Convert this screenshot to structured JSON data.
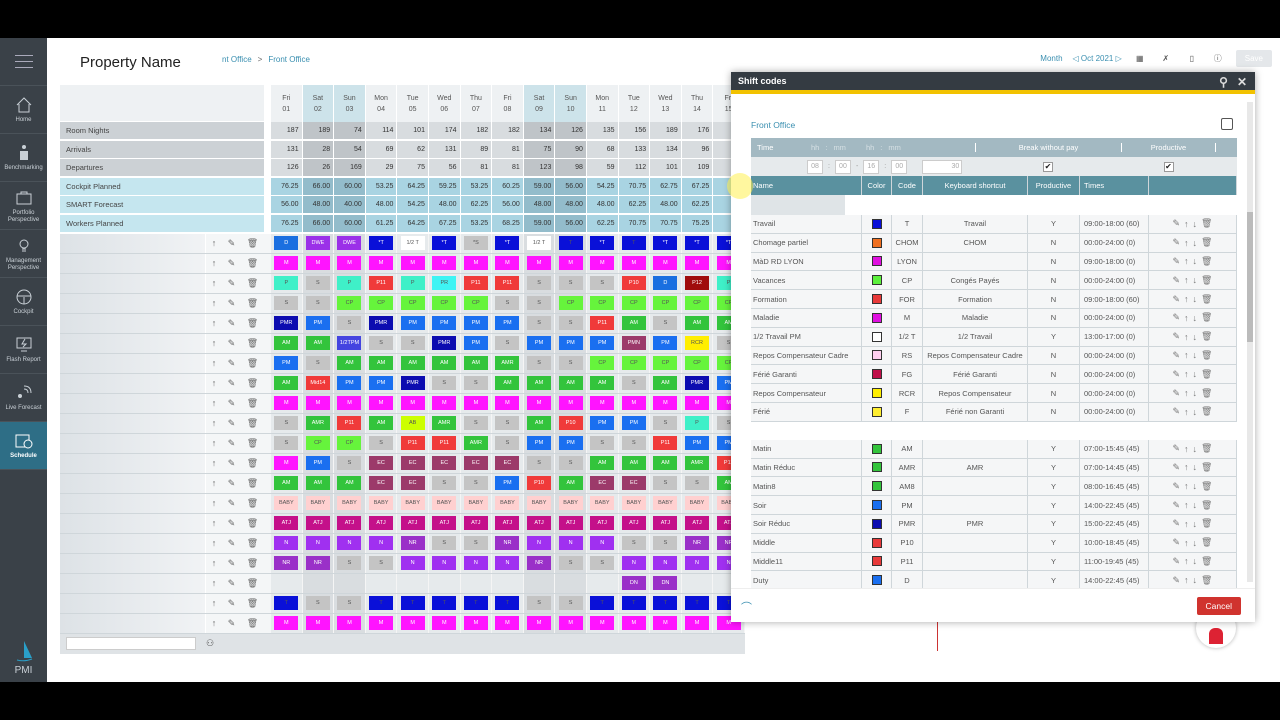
{
  "sidebar": {
    "items": [
      {
        "label": "Home",
        "icon": "home-icon"
      },
      {
        "label": "Benchmarking",
        "icon": "benchmarking-icon"
      },
      {
        "label": "Portfolio Perspective",
        "icon": "briefcase-icon"
      },
      {
        "label": "Management Perspective",
        "icon": "lightbulb-icon"
      },
      {
        "label": "Cockpit",
        "icon": "steering-wheel-icon"
      },
      {
        "label": "Flash Report",
        "icon": "flash-monitor-icon"
      },
      {
        "label": "Live Forecast",
        "icon": "satellite-icon"
      },
      {
        "label": "Schedule",
        "icon": "calendar-clock-icon",
        "active": true
      }
    ],
    "logo": "PMI"
  },
  "header": {
    "property_name": "Property Name",
    "breadcrumb": [
      "nt Office",
      "Front Office"
    ],
    "view": "Month",
    "period": "Oct 2021",
    "save_label": "Save"
  },
  "grid": {
    "days": [
      [
        "Fri",
        "01",
        0
      ],
      [
        "Sat",
        "02",
        1
      ],
      [
        "Sun",
        "03",
        1
      ],
      [
        "Mon",
        "04",
        0
      ],
      [
        "Tue",
        "05",
        0
      ],
      [
        "Wed",
        "06",
        0
      ],
      [
        "Thu",
        "07",
        0
      ],
      [
        "Fri",
        "08",
        0
      ],
      [
        "Sat",
        "09",
        1
      ],
      [
        "Sun",
        "10",
        1
      ],
      [
        "Mon",
        "11",
        0
      ],
      [
        "Tue",
        "12",
        0
      ],
      [
        "Wed",
        "13",
        0
      ],
      [
        "Thu",
        "14",
        0
      ],
      [
        "Fri",
        "15",
        0
      ]
    ],
    "metrics": [
      {
        "label": "Room Nights",
        "type": "grey",
        "values": [
          "187",
          "189",
          "74",
          "114",
          "101",
          "174",
          "182",
          "182",
          "134",
          "126",
          "135",
          "156",
          "189",
          "176",
          ""
        ]
      },
      {
        "label": "Arrivals",
        "type": "grey",
        "values": [
          "131",
          "28",
          "54",
          "69",
          "62",
          "131",
          "89",
          "81",
          "75",
          "90",
          "68",
          "133",
          "134",
          "96",
          ""
        ]
      },
      {
        "label": "Departures",
        "type": "grey",
        "values": [
          "126",
          "26",
          "169",
          "29",
          "75",
          "56",
          "81",
          "81",
          "123",
          "98",
          "59",
          "112",
          "101",
          "109",
          ""
        ]
      },
      {
        "label": "Cockpit Planned",
        "type": "blue",
        "values": [
          "76.25",
          "66.00",
          "60.00",
          "53.25",
          "64.25",
          "59.25",
          "53.25",
          "60.25",
          "59.00",
          "56.00",
          "54.25",
          "70.75",
          "62.75",
          "67.25",
          "67"
        ]
      },
      {
        "label": "SMART Forecast",
        "type": "blue",
        "values": [
          "56.00",
          "48.00",
          "40.00",
          "48.00",
          "54.25",
          "48.00",
          "62.25",
          "56.00",
          "48.00",
          "48.00",
          "48.00",
          "62.25",
          "48.00",
          "62.25",
          "56"
        ]
      },
      {
        "label": "Workers Planned",
        "type": "blue",
        "values": [
          "76.25",
          "66.00",
          "60.00",
          "61.25",
          "64.25",
          "67.25",
          "53.25",
          "68.25",
          "59.00",
          "56.00",
          "62.25",
          "70.75",
          "70.75",
          "75.25",
          "75"
        ]
      }
    ],
    "shifts": [
      [
        "D",
        "DWE",
        "DWE",
        "*T",
        "1/2 T",
        "*T",
        "*S",
        "*T",
        "1/2 T",
        "T",
        "*T",
        "T",
        "*T",
        "*T",
        "*T"
      ],
      [
        "M",
        "M",
        "M",
        "M",
        "M",
        "M",
        "M",
        "M",
        "M",
        "M",
        "M",
        "M",
        "M",
        "M",
        "M"
      ],
      [
        "P",
        "S",
        "P",
        "P11",
        "P",
        "PR",
        "P11",
        "P11",
        "S",
        "S",
        "S",
        "P10",
        "D",
        "P12",
        "P"
      ],
      [
        "S",
        "S",
        "CP",
        "CP",
        "CP",
        "CP",
        "CP",
        "S",
        "S",
        "CP",
        "CP",
        "CP",
        "CP",
        "CP",
        "CP"
      ],
      [
        "PMR",
        "PM",
        "S",
        "PMR",
        "PM",
        "PM",
        "PM",
        "PM",
        "S",
        "S",
        "P11",
        "AM",
        "S",
        "AM",
        "AM"
      ],
      [
        "AM",
        "AM",
        "1/2TPM",
        "S",
        "S",
        "PMR",
        "PM",
        "S",
        "PM",
        "PM",
        "PM",
        "PMN",
        "PM",
        "RCR",
        "S"
      ],
      [
        "PM",
        "S",
        "AM",
        "AM",
        "AM",
        "AM",
        "AM",
        "AMR",
        "S",
        "S",
        "CP",
        "CP",
        "CP",
        "CP",
        "CP"
      ],
      [
        "AM",
        "Mid14",
        "PM",
        "PM",
        "PMR",
        "S",
        "S",
        "AM",
        "AM",
        "AM",
        "AM",
        "S",
        "AM",
        "PMR",
        "PM"
      ],
      [
        "M",
        "M",
        "M",
        "M",
        "M",
        "M",
        "M",
        "M",
        "M",
        "M",
        "M",
        "M",
        "M",
        "M",
        "M"
      ],
      [
        "S",
        "AMR",
        "P11",
        "AM",
        "AB",
        "AMR",
        "S",
        "S",
        "AM",
        "P10",
        "PM",
        "PM",
        "S",
        "P",
        "S"
      ],
      [
        "S",
        "CP",
        "CP",
        "S",
        "P11",
        "P11",
        "AMR",
        "S",
        "PM",
        "PM",
        "S",
        "S",
        "P11",
        "PM",
        "PM"
      ],
      [
        "M",
        "PM",
        "S",
        "EC",
        "EC",
        "EC",
        "EC",
        "EC",
        "S",
        "S",
        "AM",
        "AM",
        "AM",
        "AMR",
        "P11"
      ],
      [
        "AM",
        "AM",
        "AM",
        "EC",
        "EC",
        "S",
        "S",
        "PM",
        "P10",
        "AM",
        "EC",
        "EC",
        "S",
        "S",
        "AM"
      ],
      [
        "BABY",
        "BABY",
        "BABY",
        "BABY",
        "BABY",
        "BABY",
        "BABY",
        "BABY",
        "BABY",
        "BABY",
        "BABY",
        "BABY",
        "BABY",
        "BABY",
        "BABY"
      ],
      [
        "ATJ",
        "ATJ",
        "ATJ",
        "ATJ",
        "ATJ",
        "ATJ",
        "ATJ",
        "ATJ",
        "ATJ",
        "ATJ",
        "ATJ",
        "ATJ",
        "ATJ",
        "ATJ",
        "ATJ"
      ],
      [
        "N",
        "N",
        "N",
        "N",
        "NR",
        "S",
        "S",
        "NR",
        "N",
        "N",
        "N",
        "S",
        "S",
        "NR",
        "NR"
      ],
      [
        "NR",
        "NR",
        "S",
        "S",
        "N",
        "N",
        "N",
        "N",
        "NR",
        "S",
        "S",
        "N",
        "N",
        "N",
        "N"
      ],
      [
        "",
        "",
        "",
        "",
        "",
        "",
        "",
        "",
        "",
        "",
        "",
        "DN",
        "DN",
        "",
        ""
      ],
      [
        "T",
        "S",
        "S",
        "T",
        "T",
        "T",
        "T",
        "T",
        "S",
        "S",
        "T",
        "T",
        "T",
        "T",
        "T"
      ],
      [
        "M",
        "M",
        "M",
        "M",
        "M",
        "M",
        "M",
        "M",
        "M",
        "M",
        "M",
        "M",
        "M",
        "M",
        "M"
      ]
    ],
    "shift_colors": {
      "D": "#1a6fe0",
      "DWE": "#9b30e8",
      "*T": "#0a10d8",
      "T": "#0a10d8",
      "1/2 T": "#ffffff",
      "*S": "#c4c4c4",
      "S": "#c4c4c4",
      "M": "#ff14ff",
      "P": "#3ff0c8",
      "PR": "#3ef4f4",
      "P11": "#f03a3a",
      "P10": "#f03a3a",
      "P12": "#a00c0c",
      "CP": "#66f43c",
      "PMR": "#0c0cb0",
      "PM": "#1a6ff0",
      "AM": "#33c43c",
      "AMR": "#33c43c",
      "1/2TPM": "#4444e0",
      "PMN": "#9c3a6a",
      "RCR": "#ffee00",
      "Mid14": "#f03a3a",
      "AB": "#ccff00",
      "EC": "#9c3a6a",
      "BABY": "#ffd0d0",
      "ATJ": "#c4108a",
      "N": "#a030f0",
      "NR": "#9a30c8",
      "DN": "#9a30c8"
    },
    "search_placeholder": ""
  },
  "modal": {
    "title": "Shift codes",
    "section": "Front Office",
    "time_header": {
      "label": "Time",
      "hh": "hh",
      "mm": "mm",
      "break_label": "Break without pay",
      "productive_label": "Productive"
    },
    "time_values": {
      "start_h": "08",
      "start_m": "00",
      "end_h": "16",
      "end_m": "00",
      "break": "30",
      "break_checked": true,
      "productive_checked": true
    },
    "columns": [
      "Name",
      "Color",
      "Code",
      "Keyboard shortcut",
      "Productive",
      "Times"
    ],
    "rows": [
      {
        "name": "Travail",
        "color": "#0a10d8",
        "code": "T",
        "shortcut": "Travail",
        "productive": "Y",
        "times": "09:00-18:00 (60)"
      },
      {
        "name": "Chomage partiel",
        "color": "#f07020",
        "code": "CHOM",
        "shortcut": "CHOM",
        "productive": "N",
        "times": "00:00-24:00 (0)"
      },
      {
        "name": "MàD RD LYON",
        "color": "#e010e0",
        "code": "LYON",
        "shortcut": "",
        "productive": "N",
        "times": "09:00-18:00 (0)"
      },
      {
        "name": "Vacances",
        "color": "#5cf03c",
        "code": "CP",
        "shortcut": "Congés Payés",
        "productive": "N",
        "times": "00:00-24:00 (0)"
      },
      {
        "name": "Formation",
        "color": "#e83a3a",
        "code": "FOR",
        "shortcut": "Formation",
        "productive": "N",
        "times": "09:00-18:00 (60)"
      },
      {
        "name": "Maladie",
        "color": "#e010e0",
        "code": "M",
        "shortcut": "Maladie",
        "productive": "N",
        "times": "00:00-24:00 (0)"
      },
      {
        "name": "1/2 Travail PM",
        "color": "#ffffff",
        "code": "1/2 T",
        "shortcut": "1/2 Travail",
        "productive": "Y",
        "times": "13:00-17:00 (0)"
      },
      {
        "name": "Repos Compensateur Cadre",
        "color": "#ffd0f0",
        "code": "RS",
        "shortcut": "Repos Compensateur Cadre",
        "productive": "N",
        "times": "00:00-24:00 (0)"
      },
      {
        "name": "Férié Garanti",
        "color": "#c0104a",
        "code": "FG",
        "shortcut": "Férié Garanti",
        "productive": "N",
        "times": "00:00-24:00 (0)"
      },
      {
        "name": "Repos Compensateur",
        "color": "#ffee00",
        "code": "RCR",
        "shortcut": "Repos Compensateur",
        "productive": "N",
        "times": "00:00-24:00 (0)"
      },
      {
        "name": "Férié",
        "color": "#ffee30",
        "code": "F",
        "shortcut": "Férié non Garanti",
        "productive": "N",
        "times": "00:00-24:00 (0)"
      },
      {
        "spacer": true
      },
      {
        "name": "Matin",
        "color": "#33c43c",
        "code": "AM",
        "shortcut": "",
        "productive": "Y",
        "times": "07:00-15:45 (45)"
      },
      {
        "name": "Matin Réduc",
        "color": "#33c43c",
        "code": "AMR",
        "shortcut": "AMR",
        "productive": "Y",
        "times": "07:00-14:45 (45)"
      },
      {
        "name": "Matin8",
        "color": "#33c43c",
        "code": "AM8",
        "shortcut": "",
        "productive": "Y",
        "times": "08:00-16:45 (45)"
      },
      {
        "name": "Soir",
        "color": "#1a6ff0",
        "code": "PM",
        "shortcut": "",
        "productive": "Y",
        "times": "14:00-22:45 (45)"
      },
      {
        "name": "Soir Réduc",
        "color": "#0c0cb0",
        "code": "PMR",
        "shortcut": "PMR",
        "productive": "Y",
        "times": "15:00-22:45 (45)"
      },
      {
        "name": "Middle",
        "color": "#e83a3a",
        "code": "P10",
        "shortcut": "",
        "productive": "Y",
        "times": "10:00-18:45 (45)"
      },
      {
        "name": "Middle11",
        "color": "#e83a3a",
        "code": "P11",
        "shortcut": "",
        "productive": "Y",
        "times": "11:00-19:45 (45)"
      },
      {
        "name": "Duty",
        "color": "#1a6ff0",
        "code": "D",
        "shortcut": "",
        "productive": "Y",
        "times": "14:00-22:45 (45)"
      }
    ],
    "cancel_label": "Cancel"
  }
}
